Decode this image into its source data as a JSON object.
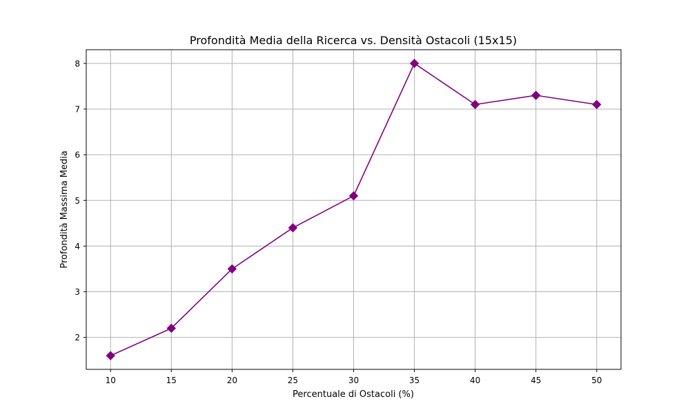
{
  "chart_data": {
    "type": "line",
    "title": "Profondità Media della Ricerca vs. Densità Ostacoli (15x15)",
    "xlabel": "Percentuale di Ostacoli (%)",
    "ylabel": "Profondità Massima Media",
    "x": [
      10,
      15,
      20,
      25,
      30,
      35,
      40,
      45,
      50
    ],
    "y": [
      1.6,
      2.2,
      3.5,
      4.4,
      5.1,
      8.0,
      7.1,
      7.3,
      7.1
    ],
    "xticks": [
      "10",
      "15",
      "20",
      "25",
      "30",
      "35",
      "40",
      "45",
      "50"
    ],
    "yticks": [
      "2",
      "3",
      "4",
      "5",
      "6",
      "7",
      "8"
    ],
    "xlim": [
      8,
      52
    ],
    "ylim": [
      1.3,
      8.3
    ],
    "grid": true,
    "marker": "diamond",
    "line_color": "#800080",
    "grid_color": "#b0b0b0"
  }
}
